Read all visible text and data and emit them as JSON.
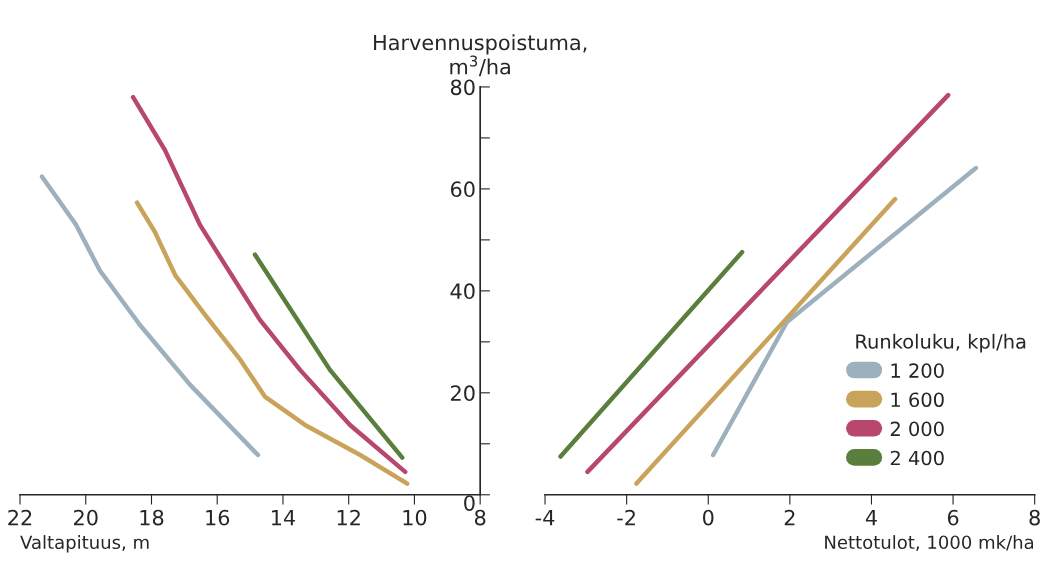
{
  "chart_data": [
    {
      "type": "line",
      "ylabel": "Harvennuspoistuma,\nm$^{3}$/ha",
      "xlabel": "Valtapituus, m",
      "xlim": [
        22,
        8
      ],
      "xticks": [
        22,
        20,
        18,
        16,
        14,
        12,
        10,
        8
      ],
      "ylim": [
        0,
        80
      ],
      "yticks": [
        0,
        {
          "value": 10,
          "label": null
        },
        20,
        {
          "value": 30,
          "label": null
        },
        40,
        {
          "value": 50,
          "label": null
        },
        60,
        {
          "value": 70,
          "label": null
        },
        80
      ],
      "grid": false,
      "legend": false,
      "series": [
        {
          "color": "#9db0bd",
          "x": [
            21.33,
            20.3,
            19.57,
            18.35,
            16.83,
            14.76
          ],
          "values": [
            62.4,
            53,
            44,
            33.3,
            21.6,
            7.8
          ]
        },
        {
          "color": "#c9a35a",
          "x": [
            18.44,
            17.9,
            17.28,
            16.37,
            15.3,
            14.54,
            13.33,
            11.65,
            10.22
          ],
          "values": [
            57.3,
            51.6,
            43.1,
            35.3,
            26.5,
            19.2,
            13.7,
            7.8,
            2.2
          ]
        },
        {
          "color": "#b8476e",
          "x": [
            18.56,
            17.59,
            16.52,
            15.76,
            14.7,
            13.48,
            11.96,
            10.28
          ],
          "values": [
            78,
            67.6,
            52.9,
            45.1,
            34.3,
            24.5,
            13.7,
            4.5
          ]
        },
        {
          "color": "#5a7f3c",
          "x": [
            14.85,
            12.57,
            10.37
          ],
          "values": [
            47.1,
            24.5,
            7.3
          ]
        }
      ]
    },
    {
      "type": "line",
      "xlabel": "Nettotulot, 1000 mk/ha",
      "xlim": [
        -4,
        8
      ],
      "xticks": [
        -4,
        -2,
        0,
        2,
        4,
        6,
        8
      ],
      "ylim": [
        0,
        80
      ],
      "tick_labels": "x",
      "grid": false,
      "legend": "right",
      "legend_title": "Runkoluku, kpl/ha",
      "series": [
        {
          "name": "1 200",
          "color": "#9db0bd",
          "x": [
            0.12,
            1.93,
            6.56
          ],
          "values": [
            7.8,
            33.9,
            64.1
          ]
        },
        {
          "name": "1 600",
          "color": "#c9a35a",
          "x": [
            -1.76,
            4.58
          ],
          "values": [
            2.2,
            58
          ]
        },
        {
          "name": "2 000",
          "color": "#b8476e",
          "x": [
            -2.96,
            5.88
          ],
          "values": [
            4.5,
            78.4
          ]
        },
        {
          "name": "2 400",
          "color": "#5a7f3c",
          "x": [
            -3.62,
            0.83
          ],
          "values": [
            7.5,
            47.6
          ]
        }
      ]
    }
  ]
}
